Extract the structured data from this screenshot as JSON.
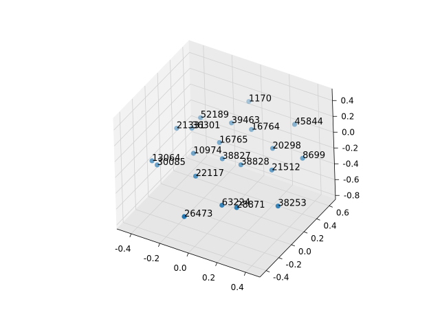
{
  "chart_data": {
    "type": "scatter3d",
    "x": [
      0.01,
      -0.22,
      -0.03,
      -0.35,
      0.05,
      0.31,
      -0.11,
      0.2,
      -0.25,
      -0.07,
      0.0,
      0.35,
      -0.43,
      -0.44,
      0.19,
      -0.18,
      -0.01,
      0.08,
      0.29,
      -0.15,
      -0.27
    ],
    "y": [
      0.48,
      0.23,
      0.29,
      0.14,
      0.42,
      0.52,
      0.27,
      0.41,
      0.17,
      0.22,
      0.35,
      0.54,
      -0.08,
      0.02,
      0.41,
      0.04,
      0.06,
      0.09,
      0.27,
      -0.22,
      0.2
    ],
    "z": [
      0.27,
      0.13,
      0.13,
      -0.01,
      -0.01,
      0.13,
      -0.15,
      -0.15,
      -0.29,
      -0.29,
      -0.43,
      -0.29,
      -0.29,
      -0.43,
      -0.43,
      -0.43,
      -0.71,
      -0.71,
      -0.71,
      -0.71,
      -0.01
    ],
    "labels": [
      "1170",
      "52189",
      "39463",
      "21331",
      "16764",
      "45844",
      "16765",
      "20298",
      "10974",
      "38827",
      "38828",
      "8699",
      "13064",
      "30085",
      "21512",
      "22117",
      "63224",
      "28871",
      "38253",
      "26473",
      "36301"
    ],
    "color": "#1f77b4",
    "xlim": [
      -0.5,
      0.5
    ],
    "ylim": [
      -0.5,
      0.7
    ],
    "zlim": [
      -0.85,
      0.55
    ],
    "xticks": [
      -0.4,
      -0.2,
      {
        "value": 0,
        "label": "0.0"
      },
      0.2,
      0.4
    ],
    "yticks": [
      -0.4,
      -0.2,
      {
        "value": 0,
        "label": "0.0"
      },
      0.2,
      0.4,
      0.6
    ],
    "zticks": [
      -0.8,
      -0.6,
      -0.4,
      -0.2,
      {
        "value": 0,
        "label": "0.0"
      },
      0.2,
      0.4
    ],
    "grid": true
  }
}
